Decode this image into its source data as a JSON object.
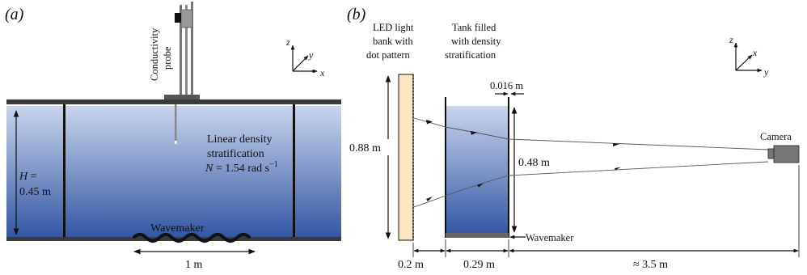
{
  "panel_a": {
    "tag": "(a)",
    "probe_label_line1": "Conductivity",
    "probe_label_line2": "probe",
    "axes": {
      "z": "z",
      "y": "y",
      "x": "x"
    },
    "stratification_line1": "Linear density",
    "stratification_line2": "stratification",
    "n_symbol": "N",
    "n_value": " = 1.54 rad s",
    "n_exponent": "−1",
    "depth_symbol": "H",
    "depth_eq": " =",
    "depth_value": "0.45 m",
    "wavemaker_label": "Wavemaker",
    "wavemaker_length": "1 m"
  },
  "panel_b": {
    "tag": "(b)",
    "led_line1": "LED light",
    "led_line2": "bank with",
    "led_line3": "dot pattern",
    "tank_line1": "Tank filled",
    "tank_line2": "with density",
    "tank_line3": "stratification",
    "axes": {
      "z": "z",
      "x": "x",
      "y": "y"
    },
    "wall_thickness": "0.016 m",
    "led_height": "0.88 m",
    "water_height": "0.48 m",
    "camera_label": "Camera",
    "wavemaker_label": "Wavemaker",
    "dist_led_tank": "0.2 m",
    "tank_width": "0.29 m",
    "dist_camera": "≈ 3.5 m"
  },
  "colors": {
    "water_top": "#c9d5ee",
    "water_bottom": "#3457a3",
    "led_fill": "#fbe6c2",
    "rails": "#3a3a3a"
  }
}
